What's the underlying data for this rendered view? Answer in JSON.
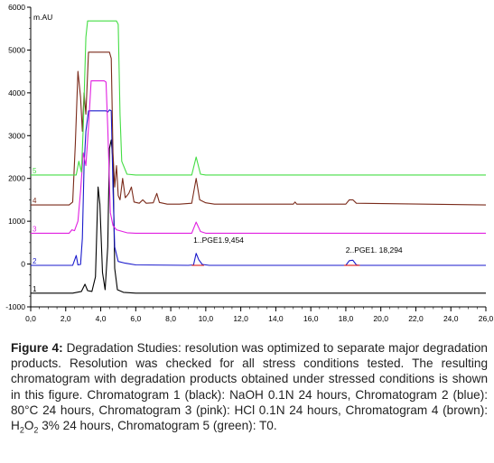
{
  "chart_data": {
    "type": "line",
    "ylabel": "m.AU",
    "xlim": [
      0,
      26
    ],
    "ylim": [
      -1000,
      6000
    ],
    "x_ticks": [
      "0,0",
      "2,0",
      "4,0",
      "6,0",
      "8,0",
      "10,0",
      "12,0",
      "14,0",
      "16,0",
      "18,0",
      "20,0",
      "22,0",
      "24,0",
      "26,0"
    ],
    "y_ticks": [
      "-1000",
      "0",
      "1000",
      "2000",
      "3000",
      "4000",
      "5000",
      "6000"
    ],
    "grid": false,
    "legend": "none",
    "series": [
      {
        "name": "1",
        "color": "#000000",
        "points": [
          [
            0,
            -680
          ],
          [
            2.4,
            -680
          ],
          [
            2.9,
            -640
          ],
          [
            3.1,
            -470
          ],
          [
            3.25,
            -620
          ],
          [
            3.5,
            -640
          ],
          [
            3.7,
            -300
          ],
          [
            3.85,
            1800
          ],
          [
            3.95,
            1400
          ],
          [
            4.1,
            -200
          ],
          [
            4.25,
            -600
          ],
          [
            4.4,
            400
          ],
          [
            4.5,
            2700
          ],
          [
            4.6,
            2900
          ],
          [
            4.7,
            2400
          ],
          [
            4.8,
            -100
          ],
          [
            4.95,
            -600
          ],
          [
            5.3,
            -660
          ],
          [
            6,
            -680
          ],
          [
            26,
            -680
          ]
        ]
      },
      {
        "name": "2",
        "color": "#1a1acc",
        "points": [
          [
            0,
            -30
          ],
          [
            2.4,
            -30
          ],
          [
            2.6,
            200
          ],
          [
            2.7,
            -20
          ],
          [
            2.85,
            -10
          ],
          [
            2.95,
            600
          ],
          [
            3.05,
            2300
          ],
          [
            3.15,
            3100
          ],
          [
            3.3,
            3580
          ],
          [
            4.3,
            3580
          ],
          [
            4.4,
            3550
          ],
          [
            4.5,
            3600
          ],
          [
            4.6,
            3580
          ],
          [
            4.7,
            1800
          ],
          [
            4.8,
            400
          ],
          [
            5.0,
            60
          ],
          [
            5.4,
            20
          ],
          [
            6,
            -20
          ],
          [
            9.0,
            -30
          ],
          [
            9.3,
            -20
          ],
          [
            9.45,
            250
          ],
          [
            9.6,
            100
          ],
          [
            9.8,
            -10
          ],
          [
            10.2,
            -30
          ],
          [
            18.0,
            -30
          ],
          [
            18.2,
            80
          ],
          [
            18.4,
            90
          ],
          [
            18.6,
            -20
          ],
          [
            18.8,
            -30
          ],
          [
            26,
            -30
          ]
        ]
      },
      {
        "name": "3",
        "color": "#e020e0",
        "points": [
          [
            0,
            720
          ],
          [
            2.2,
            720
          ],
          [
            2.35,
            800
          ],
          [
            2.5,
            780
          ],
          [
            2.7,
            1000
          ],
          [
            2.85,
            1700
          ],
          [
            3.0,
            2600
          ],
          [
            3.15,
            2300
          ],
          [
            3.3,
            3200
          ],
          [
            3.45,
            4280
          ],
          [
            4.2,
            4280
          ],
          [
            4.3,
            4250
          ],
          [
            4.4,
            3200
          ],
          [
            4.55,
            1200
          ],
          [
            4.7,
            900
          ],
          [
            4.9,
            800
          ],
          [
            5.5,
            730
          ],
          [
            6,
            720
          ],
          [
            9.2,
            720
          ],
          [
            9.45,
            980
          ],
          [
            9.7,
            760
          ],
          [
            10,
            720
          ],
          [
            26,
            720
          ]
        ]
      },
      {
        "name": "4",
        "color": "#7a2a1a",
        "points": [
          [
            0,
            1380
          ],
          [
            2.2,
            1380
          ],
          [
            2.4,
            1450
          ],
          [
            2.55,
            2800
          ],
          [
            2.7,
            4500
          ],
          [
            2.85,
            3900
          ],
          [
            2.95,
            3100
          ],
          [
            3.05,
            4000
          ],
          [
            3.15,
            3500
          ],
          [
            3.3,
            4950
          ],
          [
            4.5,
            4950
          ],
          [
            4.6,
            4800
          ],
          [
            4.7,
            2600
          ],
          [
            4.8,
            1800
          ],
          [
            4.9,
            2300
          ],
          [
            5.0,
            1600
          ],
          [
            5.1,
            1500
          ],
          [
            5.25,
            2000
          ],
          [
            5.4,
            1550
          ],
          [
            5.6,
            1650
          ],
          [
            5.75,
            1800
          ],
          [
            5.9,
            1450
          ],
          [
            6.2,
            1420
          ],
          [
            6.4,
            1500
          ],
          [
            6.6,
            1420
          ],
          [
            7.0,
            1430
          ],
          [
            7.2,
            1650
          ],
          [
            7.35,
            1440
          ],
          [
            7.8,
            1400
          ],
          [
            8.5,
            1400
          ],
          [
            9.2,
            1420
          ],
          [
            9.45,
            2000
          ],
          [
            9.65,
            1500
          ],
          [
            10,
            1430
          ],
          [
            10.5,
            1400
          ],
          [
            15,
            1400
          ],
          [
            15.1,
            1450
          ],
          [
            15.2,
            1400
          ],
          [
            18.0,
            1400
          ],
          [
            18.2,
            1500
          ],
          [
            18.4,
            1500
          ],
          [
            18.6,
            1420
          ],
          [
            26,
            1380
          ]
        ]
      },
      {
        "name": "5",
        "color": "#44dd44",
        "points": [
          [
            0,
            2080
          ],
          [
            2.6,
            2080
          ],
          [
            2.75,
            2400
          ],
          [
            2.9,
            2150
          ],
          [
            3.0,
            3200
          ],
          [
            3.15,
            5300
          ],
          [
            3.25,
            5680
          ],
          [
            4.9,
            5680
          ],
          [
            5.0,
            5600
          ],
          [
            5.1,
            3500
          ],
          [
            5.2,
            2400
          ],
          [
            5.5,
            2100
          ],
          [
            6,
            2080
          ],
          [
            9.2,
            2080
          ],
          [
            9.45,
            2500
          ],
          [
            9.7,
            2100
          ],
          [
            10,
            2080
          ],
          [
            26,
            2080
          ]
        ]
      }
    ],
    "annotations": [
      {
        "text": "1..PGE1.9,454",
        "x": 9.5,
        "y": 500
      },
      {
        "text": "2..PGE1.  18,294",
        "x": 18.2,
        "y": 260
      }
    ]
  },
  "caption": {
    "label": "Figure 4:",
    "lines": [
      "Degradation Studies: resolution was optimized to separate major",
      "degradation products. Resolution was checked for all stress conditions",
      "tested. The resulting chromatogram with degradation products obtained",
      "under stressed conditions is shown in this figure. Chromatogram 1 (black):",
      "NaOH 0.1N 24 hours, Chromatogram 2 (blue): 80°C 24 hours, Chromatogram",
      "3 (pink): HCl 0.1N 24 hours, Chromatogram 4 (brown): H",
      "O",
      " 3% 24 hours,",
      "Chromatogram 5 (green): T0."
    ],
    "sub_2": "2",
    "sub_2b": "2"
  }
}
